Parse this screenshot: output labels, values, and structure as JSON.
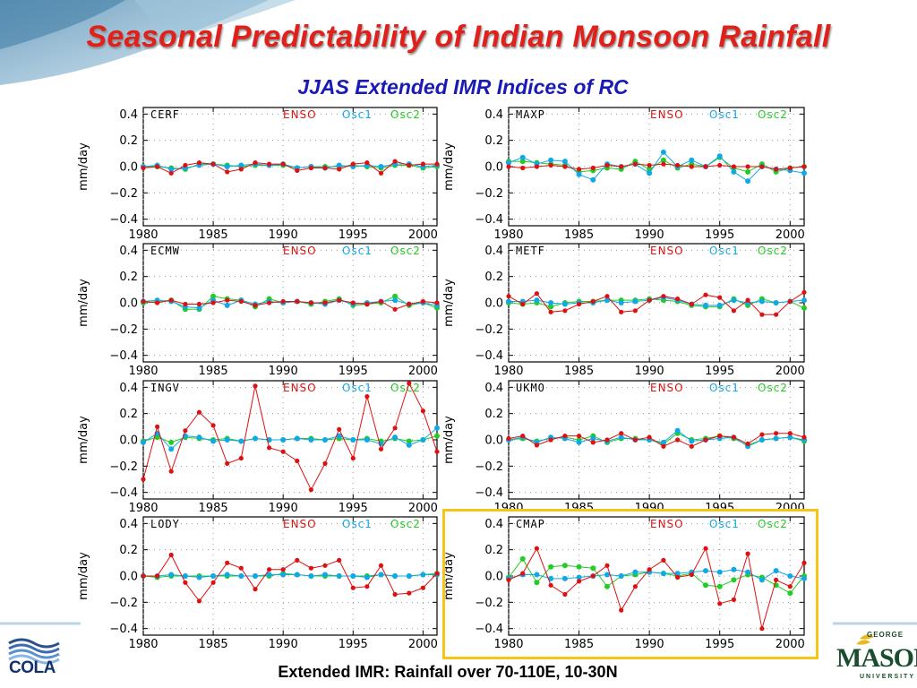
{
  "slide": {
    "title": "Seasonal Predictability of Indian Monsoon Rainfall",
    "subtitle": "JJAS Extended IMR Indices of RC",
    "footer_caption": "Extended IMR: Rainfall over 70-110E, 10-30N",
    "left_logo_text": "COLA",
    "right_logo_top": "GEORGE",
    "right_logo_name": "MASON",
    "right_logo_bottom": "UNIVERSITY"
  },
  "colors": {
    "ENSO": "#dd1111",
    "Osc1": "#11a8e8",
    "Osc2": "#22cc22",
    "title": "#e0201a",
    "subtitle": "#1a1ab8",
    "highlight": "#f5c518"
  },
  "chart_data": [
    {
      "type": "line",
      "name": "CERF",
      "ylabel": "mm/day",
      "xlim": [
        1980,
        2001
      ],
      "ylim": [
        -0.45,
        0.45
      ],
      "xticks": [
        1980,
        1985,
        1990,
        1995,
        2000
      ],
      "yticks": [
        0.4,
        0.2,
        0.0,
        -0.2,
        -0.4
      ],
      "ytick_labels": [
        "0.4",
        "0.2",
        "0.0",
        "−0.2",
        "−0.4"
      ],
      "legend": [
        "ENSO",
        "Osc1",
        "Osc2"
      ],
      "legend_position": "top-right",
      "grid": true,
      "x": [
        1980,
        1981,
        1982,
        1983,
        1984,
        1985,
        1986,
        1987,
        1988,
        1989,
        1990,
        1991,
        1992,
        1993,
        1994,
        1995,
        1996,
        1997,
        1998,
        1999,
        2000,
        2001
      ],
      "series": [
        {
          "name": "ENSO",
          "values": [
            -0.01,
            0.0,
            -0.05,
            0.01,
            0.03,
            0.02,
            -0.04,
            -0.02,
            0.03,
            0.02,
            0.02,
            -0.03,
            -0.01,
            -0.01,
            -0.02,
            0.02,
            0.03,
            -0.05,
            0.04,
            0.01,
            0.02,
            0.02
          ]
        },
        {
          "name": "Osc1",
          "values": [
            0.0,
            0.01,
            -0.02,
            -0.01,
            0.01,
            0.02,
            0.0,
            0.01,
            0.02,
            0.01,
            0.02,
            -0.01,
            0.0,
            -0.01,
            0.01,
            0.0,
            0.01,
            0.0,
            0.02,
            0.02,
            0.0,
            0.01
          ]
        },
        {
          "name": "Osc2",
          "values": [
            0.0,
            0.0,
            -0.01,
            -0.02,
            0.02,
            0.02,
            0.01,
            0.0,
            0.01,
            0.01,
            0.01,
            -0.01,
            0.0,
            0.0,
            0.0,
            0.01,
            0.0,
            -0.01,
            0.01,
            0.01,
            -0.01,
            0.0
          ]
        }
      ]
    },
    {
      "type": "line",
      "name": "MAXP",
      "ylabel": "mm/day",
      "xlim": [
        1980,
        2001
      ],
      "ylim": [
        -0.45,
        0.45
      ],
      "xticks": [
        1980,
        1985,
        1990,
        1995,
        2000
      ],
      "yticks": [
        0.4,
        0.2,
        0.0,
        -0.2,
        -0.4
      ],
      "ytick_labels": [
        "0.4",
        "0.2",
        "0.0",
        "−0.2",
        "−0.4"
      ],
      "legend": [
        "ENSO",
        "Osc1",
        "Osc2"
      ],
      "legend_position": "top-right",
      "grid": true,
      "x": [
        1980,
        1981,
        1982,
        1983,
        1984,
        1985,
        1986,
        1987,
        1988,
        1989,
        1990,
        1991,
        1992,
        1993,
        1994,
        1995,
        1996,
        1997,
        1998,
        1999,
        2000,
        2001
      ],
      "series": [
        {
          "name": "ENSO",
          "values": [
            0.0,
            -0.01,
            0.0,
            0.01,
            0.0,
            -0.02,
            -0.01,
            0.01,
            0.0,
            0.02,
            0.01,
            0.02,
            0.01,
            0.0,
            0.0,
            0.01,
            0.0,
            0.0,
            0.0,
            -0.02,
            -0.01,
            0.0
          ]
        },
        {
          "name": "Osc1",
          "values": [
            0.03,
            0.07,
            0.02,
            0.05,
            0.04,
            -0.06,
            -0.1,
            0.02,
            0.0,
            0.02,
            -0.05,
            0.11,
            0.0,
            0.05,
            0.0,
            0.08,
            -0.04,
            -0.11,
            0.0,
            -0.02,
            -0.03,
            -0.05
          ]
        },
        {
          "name": "Osc2",
          "values": [
            0.04,
            0.04,
            0.03,
            0.02,
            0.01,
            -0.04,
            -0.03,
            -0.01,
            -0.02,
            0.04,
            -0.02,
            0.05,
            -0.01,
            0.02,
            0.0,
            0.07,
            -0.01,
            -0.04,
            0.02,
            -0.04,
            -0.01,
            0.0
          ]
        }
      ]
    },
    {
      "type": "line",
      "name": "ECMW",
      "ylabel": "mm/day",
      "xlim": [
        1980,
        2001
      ],
      "ylim": [
        -0.45,
        0.45
      ],
      "xticks": [
        1980,
        1985,
        1990,
        1995,
        2000
      ],
      "yticks": [
        0.4,
        0.2,
        0.0,
        -0.2,
        -0.4
      ],
      "ytick_labels": [
        "0.4",
        "0.2",
        "0.0",
        "−0.2",
        "−0.4"
      ],
      "legend": [
        "ENSO",
        "Osc1",
        "Osc2"
      ],
      "legend_position": "top-right",
      "grid": true,
      "x": [
        1980,
        1981,
        1982,
        1983,
        1984,
        1985,
        1986,
        1987,
        1988,
        1989,
        1990,
        1991,
        1992,
        1993,
        1994,
        1995,
        1996,
        1997,
        1998,
        1999,
        2000,
        2001
      ],
      "series": [
        {
          "name": "ENSO",
          "values": [
            0.01,
            0.0,
            0.02,
            -0.01,
            -0.01,
            0.0,
            0.02,
            0.01,
            -0.02,
            0.0,
            0.01,
            0.01,
            0.0,
            0.0,
            0.02,
            0.0,
            -0.01,
            0.01,
            -0.05,
            -0.01,
            0.01,
            0.0
          ]
        },
        {
          "name": "Osc1",
          "values": [
            0.01,
            0.02,
            0.01,
            -0.03,
            -0.04,
            0.02,
            -0.02,
            0.02,
            -0.01,
            0.01,
            0.0,
            0.01,
            0.0,
            -0.01,
            0.02,
            -0.01,
            0.0,
            0.01,
            0.02,
            -0.01,
            0.0,
            -0.02
          ]
        },
        {
          "name": "Osc2",
          "values": [
            0.0,
            0.01,
            0.02,
            -0.05,
            -0.05,
            0.05,
            0.03,
            0.02,
            -0.03,
            0.03,
            0.0,
            0.01,
            -0.01,
            0.01,
            0.03,
            -0.02,
            -0.01,
            0.0,
            0.05,
            -0.02,
            0.0,
            -0.04
          ]
        }
      ]
    },
    {
      "type": "line",
      "name": "METF",
      "ylabel": "mm/day",
      "xlim": [
        1980,
        2001
      ],
      "ylim": [
        -0.45,
        0.45
      ],
      "xticks": [
        1980,
        1985,
        1990,
        1995,
        2000
      ],
      "yticks": [
        0.4,
        0.2,
        0.0,
        -0.2,
        -0.4
      ],
      "ytick_labels": [
        "0.4",
        "0.2",
        "0.0",
        "−0.2",
        "−0.4"
      ],
      "legend": [
        "ENSO",
        "Osc1",
        "Osc2"
      ],
      "legend_position": "top-right",
      "grid": true,
      "x": [
        1980,
        1981,
        1982,
        1983,
        1984,
        1985,
        1986,
        1987,
        1988,
        1989,
        1990,
        1991,
        1992,
        1993,
        1994,
        1995,
        1996,
        1997,
        1998,
        1999,
        2000,
        2001
      ],
      "series": [
        {
          "name": "ENSO",
          "values": [
            0.05,
            -0.01,
            0.07,
            -0.07,
            -0.06,
            -0.01,
            0.01,
            0.05,
            -0.07,
            -0.06,
            0.02,
            0.05,
            0.03,
            -0.01,
            0.06,
            0.04,
            -0.06,
            0.02,
            -0.09,
            -0.09,
            0.01,
            0.08
          ]
        },
        {
          "name": "Osc1",
          "values": [
            0.01,
            0.01,
            0.02,
            0.0,
            -0.01,
            0.0,
            0.0,
            0.02,
            0.0,
            0.01,
            0.02,
            0.04,
            0.02,
            -0.01,
            -0.02,
            -0.02,
            0.02,
            0.0,
            0.01,
            0.0,
            0.01,
            0.02
          ]
        },
        {
          "name": "Osc2",
          "values": [
            0.0,
            -0.01,
            0.0,
            -0.03,
            0.0,
            0.01,
            0.01,
            0.02,
            0.02,
            0.02,
            0.03,
            0.02,
            0.01,
            -0.02,
            -0.03,
            -0.03,
            0.03,
            -0.02,
            0.03,
            0.0,
            0.01,
            -0.04
          ]
        }
      ]
    },
    {
      "type": "line",
      "name": "INGV",
      "ylabel": "mm/day",
      "xlim": [
        1980,
        2001
      ],
      "ylim": [
        -0.45,
        0.45
      ],
      "xticks": [
        1980,
        1985,
        1990,
        1995,
        2000
      ],
      "yticks": [
        0.4,
        0.2,
        0.0,
        -0.2,
        -0.4
      ],
      "ytick_labels": [
        "0.4",
        "0.2",
        "0.0",
        "−0.2",
        "−0.4"
      ],
      "legend": [
        "ENSO",
        "Osc1",
        "Osc2"
      ],
      "legend_position": "top-right",
      "grid": true,
      "x": [
        1980,
        1981,
        1982,
        1983,
        1984,
        1985,
        1986,
        1987,
        1988,
        1989,
        1990,
        1991,
        1992,
        1993,
        1994,
        1995,
        1996,
        1997,
        1998,
        1999,
        2000,
        2001
      ],
      "series": [
        {
          "name": "ENSO",
          "values": [
            -0.3,
            0.1,
            -0.24,
            0.07,
            0.21,
            0.11,
            -0.18,
            -0.14,
            0.41,
            -0.06,
            -0.09,
            -0.16,
            -0.38,
            -0.18,
            0.08,
            -0.14,
            0.33,
            -0.07,
            0.09,
            0.43,
            0.22,
            -0.09
          ]
        },
        {
          "name": "Osc1",
          "values": [
            -0.02,
            0.05,
            -0.07,
            0.03,
            0.02,
            -0.01,
            0.0,
            -0.01,
            0.01,
            0.0,
            0.0,
            0.01,
            0.0,
            0.0,
            0.03,
            0.0,
            0.0,
            -0.03,
            0.02,
            -0.04,
            0.0,
            0.09
          ]
        },
        {
          "name": "Osc2",
          "values": [
            -0.01,
            0.02,
            -0.02,
            0.02,
            0.01,
            0.0,
            0.01,
            -0.01,
            0.01,
            0.0,
            0.0,
            0.01,
            0.01,
            0.0,
            0.01,
            0.0,
            0.01,
            -0.01,
            0.01,
            -0.01,
            0.0,
            0.03
          ]
        }
      ]
    },
    {
      "type": "line",
      "name": "UKMO",
      "ylabel": "mm/day",
      "xlim": [
        1980,
        2001
      ],
      "ylim": [
        -0.45,
        0.45
      ],
      "xticks": [
        1980,
        1985,
        1990,
        1995,
        2000
      ],
      "yticks": [
        0.4,
        0.2,
        0.0,
        -0.2,
        -0.4
      ],
      "ytick_labels": [
        "0.4",
        "0.2",
        "0.0",
        "−0.2",
        "−0.4"
      ],
      "legend": [
        "ENSO",
        "Osc1",
        "Osc2"
      ],
      "legend_position": "top-right",
      "grid": true,
      "x": [
        1980,
        1981,
        1982,
        1983,
        1984,
        1985,
        1986,
        1987,
        1988,
        1989,
        1990,
        1991,
        1992,
        1993,
        1994,
        1995,
        1996,
        1997,
        1998,
        1999,
        2000,
        2001
      ],
      "series": [
        {
          "name": "ENSO",
          "values": [
            0.01,
            0.03,
            -0.04,
            0.0,
            0.03,
            0.03,
            -0.02,
            0.0,
            0.05,
            0.0,
            0.02,
            -0.05,
            0.0,
            -0.05,
            0.0,
            0.03,
            0.02,
            -0.03,
            0.04,
            0.05,
            0.05,
            0.02
          ]
        },
        {
          "name": "Osc1",
          "values": [
            0.0,
            0.02,
            -0.02,
            0.02,
            0.01,
            -0.02,
            0.01,
            -0.01,
            0.02,
            0.0,
            0.0,
            -0.02,
            0.07,
            -0.01,
            0.0,
            0.01,
            0.02,
            -0.05,
            0.0,
            0.01,
            0.02,
            0.0
          ]
        },
        {
          "name": "Osc2",
          "values": [
            0.0,
            0.01,
            -0.01,
            0.01,
            0.02,
            0.0,
            0.03,
            -0.02,
            0.01,
            0.01,
            0.0,
            -0.03,
            0.05,
            0.0,
            0.01,
            0.03,
            0.01,
            -0.04,
            0.0,
            0.01,
            0.02,
            -0.01
          ]
        }
      ]
    },
    {
      "type": "line",
      "name": "LODY",
      "ylabel": "mm/day",
      "xlim": [
        1980,
        2001
      ],
      "ylim": [
        -0.45,
        0.45
      ],
      "xticks": [
        1980,
        1985,
        1990,
        1995,
        2000
      ],
      "yticks": [
        0.4,
        0.2,
        0.0,
        -0.2,
        -0.4
      ],
      "ytick_labels": [
        "0.4",
        "0.2",
        "0.0",
        "−0.2",
        "−0.4"
      ],
      "legend": [
        "ENSO",
        "Osc1",
        "Osc2"
      ],
      "legend_position": "top-right",
      "grid": true,
      "x": [
        1980,
        1981,
        1982,
        1983,
        1984,
        1985,
        1986,
        1987,
        1988,
        1989,
        1990,
        1991,
        1992,
        1993,
        1994,
        1995,
        1996,
        1997,
        1998,
        1999,
        2000,
        2001
      ],
      "series": [
        {
          "name": "ENSO",
          "values": [
            0.0,
            0.0,
            0.16,
            -0.05,
            -0.19,
            -0.05,
            0.1,
            0.06,
            -0.1,
            0.05,
            0.05,
            0.12,
            0.06,
            0.08,
            0.12,
            -0.09,
            -0.08,
            0.08,
            -0.14,
            -0.13,
            -0.09,
            0.02
          ]
        },
        {
          "name": "Osc1",
          "values": [
            0.0,
            0.0,
            0.01,
            0.0,
            -0.01,
            0.0,
            0.01,
            0.0,
            0.0,
            0.01,
            0.01,
            0.01,
            0.0,
            0.01,
            0.0,
            0.0,
            -0.01,
            0.01,
            0.0,
            0.0,
            0.01,
            0.01
          ]
        },
        {
          "name": "Osc2",
          "values": [
            0.0,
            -0.01,
            0.0,
            0.0,
            0.0,
            0.0,
            0.0,
            0.0,
            0.0,
            0.0,
            0.02,
            0.01,
            0.0,
            0.0,
            0.0,
            0.0,
            0.0,
            0.01,
            0.0,
            0.0,
            0.01,
            0.02
          ]
        }
      ]
    },
    {
      "type": "line",
      "name": "CMAP",
      "ylabel": "mm/day",
      "xlim": [
        1980,
        2001
      ],
      "ylim": [
        -0.45,
        0.45
      ],
      "xticks": [
        1980,
        1985,
        1990,
        1995,
        2000
      ],
      "yticks": [
        0.4,
        0.2,
        0.0,
        -0.2,
        -0.4
      ],
      "ytick_labels": [
        "0.4",
        "0.2",
        "0.0",
        "−0.2",
        "−0.4"
      ],
      "legend": [
        "ENSO",
        "Osc1",
        "Osc2"
      ],
      "legend_position": "top-right",
      "grid": true,
      "x": [
        1980,
        1981,
        1982,
        1983,
        1984,
        1985,
        1986,
        1987,
        1988,
        1989,
        1990,
        1991,
        1992,
        1993,
        1994,
        1995,
        1996,
        1997,
        1998,
        1999,
        2000,
        2001
      ],
      "series": [
        {
          "name": "ENSO",
          "values": [
            -0.03,
            0.02,
            0.21,
            -0.07,
            -0.14,
            -0.04,
            0.0,
            0.08,
            -0.26,
            -0.08,
            0.05,
            0.12,
            -0.01,
            0.01,
            0.21,
            -0.21,
            -0.18,
            0.17,
            -0.4,
            -0.03,
            -0.08,
            0.1
          ]
        },
        {
          "name": "Osc1",
          "values": [
            -0.02,
            0.01,
            0.01,
            -0.02,
            -0.02,
            -0.01,
            0.0,
            0.01,
            0.0,
            0.03,
            0.03,
            0.02,
            0.02,
            0.03,
            0.04,
            0.03,
            0.05,
            0.03,
            -0.03,
            0.04,
            0.0,
            -0.02
          ]
        },
        {
          "name": "Osc2",
          "values": [
            -0.01,
            0.13,
            -0.05,
            0.07,
            0.08,
            0.07,
            0.06,
            -0.08,
            0.0,
            0.01,
            0.03,
            0.02,
            0.0,
            0.02,
            -0.07,
            -0.08,
            -0.03,
            0.01,
            -0.01,
            -0.07,
            -0.13,
            0.0
          ]
        }
      ]
    }
  ]
}
